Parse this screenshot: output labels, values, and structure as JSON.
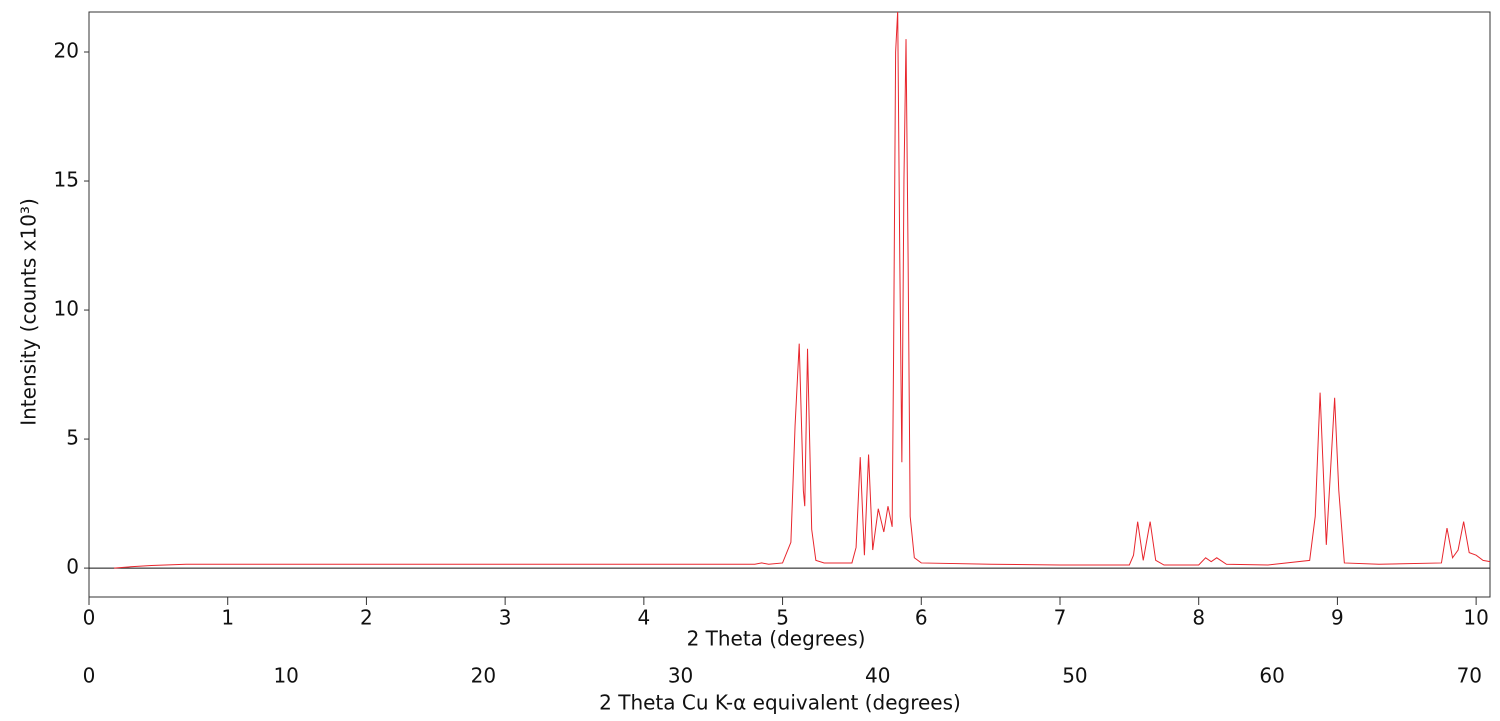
{
  "chart_data": {
    "type": "line",
    "ylabel": "Intensity (counts x10³)",
    "xlabel": "2 Theta (degrees)",
    "x2label": "2 Theta Cu K-α equivalent (degrees)",
    "x": [
      0.18,
      0.3,
      0.45,
      0.6,
      0.7,
      1.0,
      2.0,
      3.0,
      4.0,
      4.8,
      4.85,
      4.9,
      5.0,
      5.06,
      5.09,
      5.12,
      5.15,
      5.16,
      5.18,
      5.21,
      5.24,
      5.3,
      5.5,
      5.53,
      5.56,
      5.59,
      5.62,
      5.65,
      5.69,
      5.73,
      5.76,
      5.79,
      5.8,
      5.815,
      5.83,
      5.845,
      5.86,
      5.875,
      5.89,
      5.905,
      5.92,
      5.95,
      6.0,
      6.5,
      7.0,
      7.5,
      7.53,
      7.56,
      7.6,
      7.65,
      7.69,
      7.75,
      8.0,
      8.05,
      8.09,
      8.13,
      8.2,
      8.5,
      8.8,
      8.84,
      8.875,
      8.92,
      8.98,
      9.01,
      9.05,
      9.3,
      9.75,
      9.79,
      9.83,
      9.87,
      9.91,
      9.95,
      10.0,
      10.05,
      10.1
    ],
    "series": [
      {
        "color": "#e8262d",
        "values": [
          0,
          0.05,
          0.1,
          0.13,
          0.15,
          0.15,
          0.15,
          0.15,
          0.15,
          0.15,
          0.2,
          0.15,
          0.2,
          1.0,
          5.5,
          8.7,
          3.0,
          2.4,
          8.5,
          1.5,
          0.3,
          0.2,
          0.2,
          0.8,
          4.3,
          0.5,
          4.4,
          0.7,
          2.3,
          1.4,
          2.4,
          1.6,
          8.0,
          20.0,
          21.6,
          12.0,
          4.1,
          15.0,
          20.5,
          12.0,
          2.0,
          0.4,
          0.2,
          0.15,
          0.12,
          0.12,
          0.5,
          1.8,
          0.3,
          1.8,
          0.3,
          0.12,
          0.12,
          0.4,
          0.25,
          0.4,
          0.15,
          0.12,
          0.3,
          2.0,
          6.8,
          0.9,
          6.6,
          3.0,
          0.2,
          0.15,
          0.2,
          1.55,
          0.4,
          0.7,
          1.8,
          0.6,
          0.5,
          0.3,
          0.25
        ]
      }
    ],
    "xlim": [
      0,
      10.1
    ],
    "xticks": [
      0,
      1,
      2,
      3,
      4,
      5,
      6,
      7,
      8,
      9,
      10
    ],
    "x2lim": [
      0,
      71.05
    ],
    "x2ticks": [
      0,
      10,
      20,
      30,
      40,
      50,
      60,
      70
    ],
    "ylim": [
      -1.12,
      21.55
    ],
    "yticks": [
      0,
      5,
      10,
      15,
      20
    ],
    "zero_line": true
  }
}
